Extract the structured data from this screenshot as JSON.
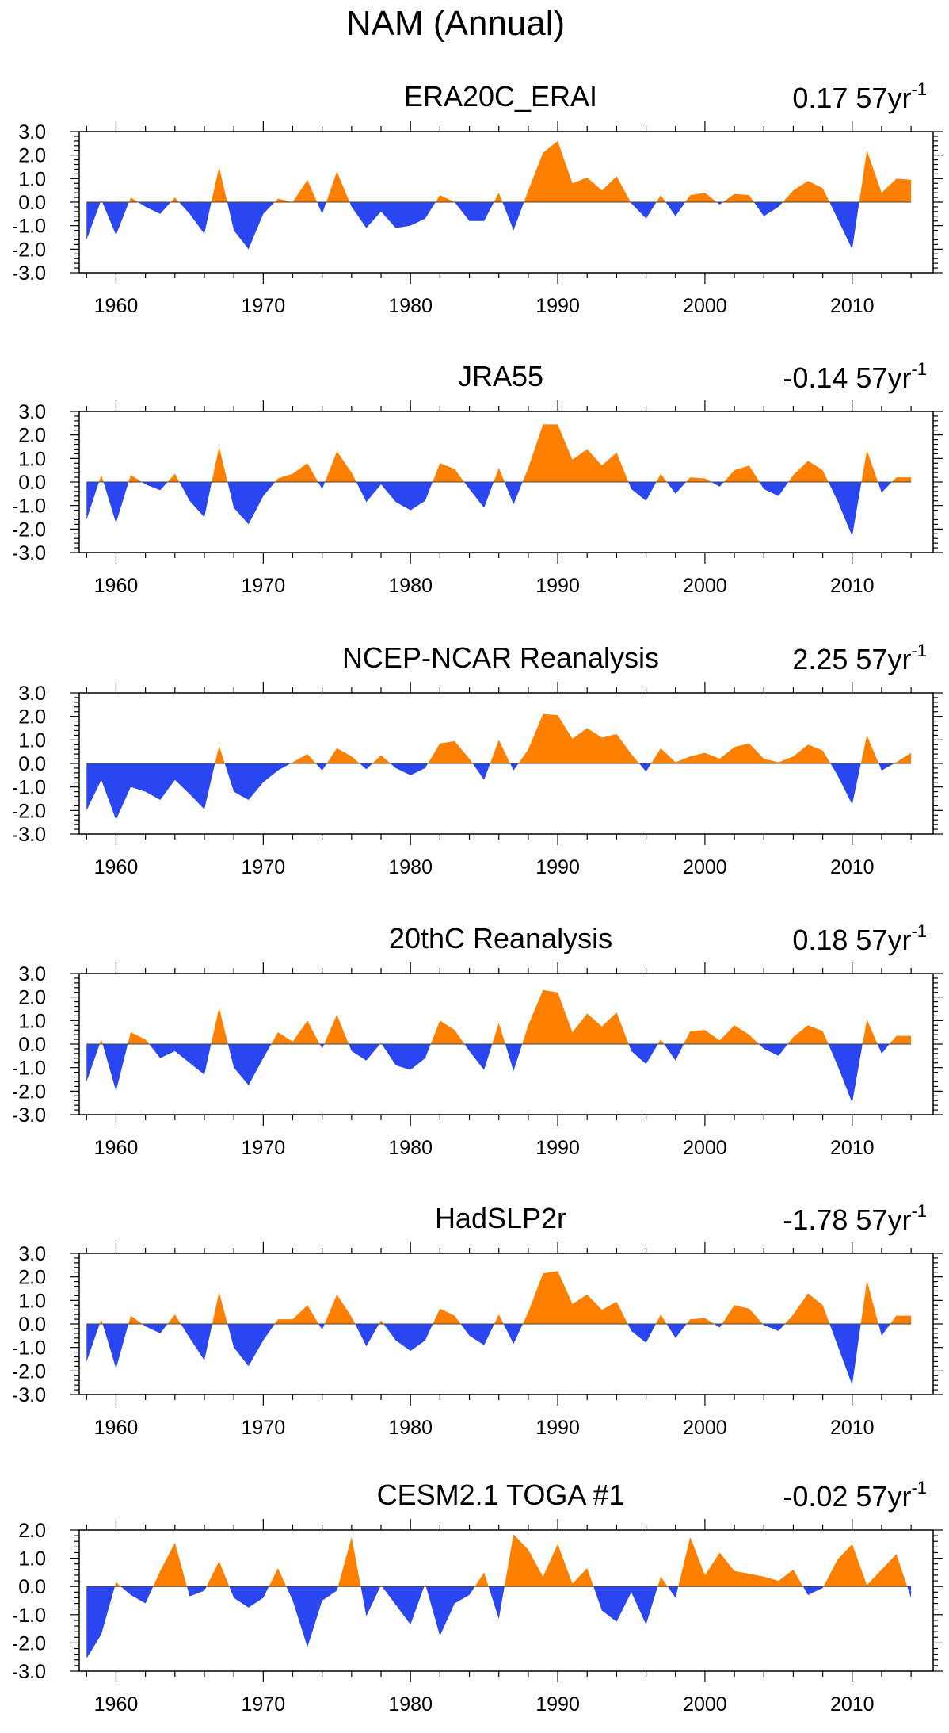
{
  "figure": {
    "title": "NAM (Annual)",
    "colors": {
      "positive": "#ff8000",
      "negative": "#2a46f0",
      "axis": "#000000"
    }
  },
  "chart_data": [
    {
      "type": "area",
      "title": "ERA20C_ERAI",
      "trend_label": "0.17 57yr",
      "trend_superscript": "-1",
      "x": [
        1958,
        1959,
        1960,
        1961,
        1962,
        1963,
        1964,
        1965,
        1966,
        1967,
        1968,
        1969,
        1970,
        1971,
        1972,
        1973,
        1974,
        1975,
        1976,
        1977,
        1978,
        1979,
        1980,
        1981,
        1982,
        1983,
        1984,
        1985,
        1986,
        1987,
        1988,
        1989,
        1990,
        1991,
        1992,
        1993,
        1994,
        1995,
        1996,
        1997,
        1998,
        1999,
        2000,
        2001,
        2002,
        2003,
        2004,
        2005,
        2006,
        2007,
        2008,
        2009,
        2010,
        2011,
        2012,
        2013,
        2014
      ],
      "values": [
        -1.6,
        0.1,
        -1.4,
        0.2,
        -0.2,
        -0.5,
        0.2,
        -0.5,
        -1.35,
        1.5,
        -1.2,
        -2.0,
        -0.5,
        0.15,
        0.0,
        0.95,
        -0.5,
        1.3,
        -0.2,
        -1.1,
        -0.4,
        -1.1,
        -1.0,
        -0.7,
        0.3,
        0.0,
        -0.8,
        -0.8,
        0.4,
        -1.2,
        0.5,
        2.1,
        2.6,
        0.8,
        1.05,
        0.5,
        1.1,
        -0.05,
        -0.7,
        0.3,
        -0.6,
        0.3,
        0.4,
        -0.1,
        0.35,
        0.3,
        -0.6,
        -0.2,
        0.5,
        0.9,
        0.6,
        -0.7,
        -2.0,
        2.2,
        0.4,
        1.0,
        0.95
      ],
      "xlim": [
        1957.5,
        2015.5
      ],
      "ylim": [
        -3.0,
        3.0
      ],
      "xticks": [
        1960,
        1970,
        1980,
        1990,
        2000,
        2010
      ],
      "yticks": [
        3.0,
        2.0,
        1.0,
        0.0,
        -1.0,
        -2.0,
        -3.0
      ],
      "ytick_labels": [
        "3.0",
        "2.0",
        "1.0",
        "0.0",
        "-1.0",
        "-2.0",
        "-3.0"
      ]
    },
    {
      "type": "area",
      "title": "JRA55",
      "trend_label": "-0.14 57yr",
      "trend_superscript": "-1",
      "x": [
        1958,
        1959,
        1960,
        1961,
        1962,
        1963,
        1964,
        1965,
        1966,
        1967,
        1968,
        1969,
        1970,
        1971,
        1972,
        1973,
        1974,
        1975,
        1976,
        1977,
        1978,
        1979,
        1980,
        1981,
        1982,
        1983,
        1984,
        1985,
        1986,
        1987,
        1988,
        1989,
        1990,
        1991,
        1992,
        1993,
        1994,
        1995,
        1996,
        1997,
        1998,
        1999,
        2000,
        2001,
        2002,
        2003,
        2004,
        2005,
        2006,
        2007,
        2008,
        2009,
        2010,
        2011,
        2012,
        2013,
        2014
      ],
      "values": [
        -1.6,
        0.3,
        -1.75,
        0.3,
        -0.1,
        -0.35,
        0.35,
        -0.8,
        -1.5,
        1.5,
        -1.1,
        -1.8,
        -0.6,
        0.15,
        0.35,
        0.8,
        -0.3,
        1.3,
        0.4,
        -0.85,
        -0.1,
        -0.85,
        -1.2,
        -0.8,
        0.8,
        0.55,
        -0.3,
        -1.1,
        0.6,
        -0.95,
        0.6,
        2.45,
        2.45,
        0.95,
        1.4,
        0.7,
        1.25,
        -0.3,
        -0.8,
        0.35,
        -0.5,
        0.2,
        0.15,
        -0.2,
        0.5,
        0.7,
        -0.3,
        -0.6,
        0.3,
        0.9,
        0.5,
        -0.8,
        -2.3,
        1.35,
        -0.45,
        0.2,
        0.2
      ],
      "xlim": [
        1957.5,
        2015.5
      ],
      "ylim": [
        -3.0,
        3.0
      ],
      "xticks": [
        1960,
        1970,
        1980,
        1990,
        2000,
        2010
      ],
      "yticks": [
        3.0,
        2.0,
        1.0,
        0.0,
        -1.0,
        -2.0,
        -3.0
      ],
      "ytick_labels": [
        "3.0",
        "2.0",
        "1.0",
        "0.0",
        "-1.0",
        "-2.0",
        "-3.0"
      ]
    },
    {
      "type": "area",
      "title": "NCEP-NCAR Reanalysis",
      "trend_label": "2.25 57yr",
      "trend_superscript": "-1",
      "x": [
        1958,
        1959,
        1960,
        1961,
        1962,
        1963,
        1964,
        1965,
        1966,
        1967,
        1968,
        1969,
        1970,
        1971,
        1972,
        1973,
        1974,
        1975,
        1976,
        1977,
        1978,
        1979,
        1980,
        1981,
        1982,
        1983,
        1984,
        1985,
        1986,
        1987,
        1988,
        1989,
        1990,
        1991,
        1992,
        1993,
        1994,
        1995,
        1996,
        1997,
        1998,
        1999,
        2000,
        2001,
        2002,
        2003,
        2004,
        2005,
        2006,
        2007,
        2008,
        2009,
        2010,
        2011,
        2012,
        2013,
        2014
      ],
      "values": [
        -2.0,
        -0.7,
        -2.4,
        -1.0,
        -1.2,
        -1.55,
        -0.7,
        -1.3,
        -1.95,
        0.75,
        -1.2,
        -1.55,
        -0.8,
        -0.3,
        0.05,
        0.4,
        -0.3,
        0.65,
        0.3,
        -0.25,
        0.35,
        -0.2,
        -0.5,
        -0.2,
        0.85,
        0.95,
        0.2,
        -0.7,
        1.0,
        -0.3,
        0.6,
        2.1,
        2.05,
        1.05,
        1.5,
        1.1,
        1.25,
        0.4,
        -0.35,
        0.65,
        0.05,
        0.3,
        0.45,
        0.2,
        0.7,
        0.85,
        0.2,
        0.05,
        0.3,
        0.8,
        0.55,
        -0.5,
        -1.75,
        1.2,
        -0.3,
        0.05,
        0.45
      ],
      "xlim": [
        1957.5,
        2015.5
      ],
      "ylim": [
        -3.0,
        3.0
      ],
      "xticks": [
        1960,
        1970,
        1980,
        1990,
        2000,
        2010
      ],
      "yticks": [
        3.0,
        2.0,
        1.0,
        0.0,
        -1.0,
        -2.0,
        -3.0
      ],
      "ytick_labels": [
        "3.0",
        "2.0",
        "1.0",
        "0.0",
        "-1.0",
        "-2.0",
        "-3.0"
      ]
    },
    {
      "type": "area",
      "title": "20thC Reanalysis",
      "trend_label": "0.18 57yr",
      "trend_superscript": "-1",
      "x": [
        1958,
        1959,
        1960,
        1961,
        1962,
        1963,
        1964,
        1965,
        1966,
        1967,
        1968,
        1969,
        1970,
        1971,
        1972,
        1973,
        1974,
        1975,
        1976,
        1977,
        1978,
        1979,
        1980,
        1981,
        1982,
        1983,
        1984,
        1985,
        1986,
        1987,
        1988,
        1989,
        1990,
        1991,
        1992,
        1993,
        1994,
        1995,
        1996,
        1997,
        1998,
        1999,
        2000,
        2001,
        2002,
        2003,
        2004,
        2005,
        2006,
        2007,
        2008,
        2009,
        2010,
        2011,
        2012,
        2013,
        2014
      ],
      "values": [
        -1.6,
        0.2,
        -2.0,
        0.5,
        0.2,
        -0.6,
        -0.3,
        -0.8,
        -1.3,
        1.55,
        -1.0,
        -1.75,
        -0.6,
        0.5,
        0.1,
        1.0,
        -0.2,
        1.25,
        -0.3,
        -0.7,
        0.05,
        -0.9,
        -1.1,
        -0.6,
        1.0,
        0.6,
        -0.3,
        -1.1,
        0.9,
        -1.15,
        0.8,
        2.3,
        2.2,
        0.5,
        1.3,
        0.75,
        1.35,
        -0.3,
        -0.85,
        0.2,
        -0.7,
        0.55,
        0.6,
        0.15,
        0.8,
        0.4,
        -0.2,
        -0.5,
        0.3,
        0.8,
        0.55,
        -0.9,
        -2.5,
        1.05,
        -0.4,
        0.35,
        0.35
      ],
      "xlim": [
        1957.5,
        2015.5
      ],
      "ylim": [
        -3.0,
        3.0
      ],
      "xticks": [
        1960,
        1970,
        1980,
        1990,
        2000,
        2010
      ],
      "yticks": [
        3.0,
        2.0,
        1.0,
        0.0,
        -1.0,
        -2.0,
        -3.0
      ],
      "ytick_labels": [
        "3.0",
        "2.0",
        "1.0",
        "0.0",
        "-1.0",
        "-2.0",
        "-3.0"
      ]
    },
    {
      "type": "area",
      "title": "HadSLP2r",
      "trend_label": "-1.78 57yr",
      "trend_superscript": "-1",
      "x": [
        1958,
        1959,
        1960,
        1961,
        1962,
        1963,
        1964,
        1965,
        1966,
        1967,
        1968,
        1969,
        1970,
        1971,
        1972,
        1973,
        1974,
        1975,
        1976,
        1977,
        1978,
        1979,
        1980,
        1981,
        1982,
        1983,
        1984,
        1985,
        1986,
        1987,
        1988,
        1989,
        1990,
        1991,
        1992,
        1993,
        1994,
        1995,
        1996,
        1997,
        1998,
        1999,
        2000,
        2001,
        2002,
        2003,
        2004,
        2005,
        2006,
        2007,
        2008,
        2009,
        2010,
        2011,
        2012,
        2013,
        2014
      ],
      "values": [
        -1.6,
        0.2,
        -1.9,
        0.35,
        -0.1,
        -0.4,
        0.4,
        -0.6,
        -1.55,
        1.35,
        -1.0,
        -1.8,
        -0.7,
        0.2,
        0.2,
        0.8,
        -0.25,
        1.25,
        0.3,
        -0.95,
        0.15,
        -0.7,
        -1.15,
        -0.7,
        0.65,
        0.35,
        -0.5,
        -0.9,
        0.4,
        -0.85,
        0.5,
        2.15,
        2.25,
        0.85,
        1.25,
        0.6,
        0.95,
        -0.3,
        -0.8,
        0.4,
        -0.6,
        0.2,
        0.25,
        -0.15,
        0.8,
        0.65,
        -0.05,
        -0.3,
        0.4,
        1.3,
        0.8,
        -0.9,
        -2.6,
        1.85,
        -0.5,
        0.35,
        0.35
      ],
      "xlim": [
        1957.5,
        2015.5
      ],
      "ylim": [
        -3.0,
        3.0
      ],
      "xticks": [
        1960,
        1970,
        1980,
        1990,
        2000,
        2010
      ],
      "yticks": [
        3.0,
        2.0,
        1.0,
        0.0,
        -1.0,
        -2.0,
        -3.0
      ],
      "ytick_labels": [
        "3.0",
        "2.0",
        "1.0",
        "0.0",
        "-1.0",
        "-2.0",
        "-3.0"
      ]
    },
    {
      "type": "area",
      "title": "CESM2.1 TOGA #1",
      "trend_label": "-0.02 57yr",
      "trend_superscript": "-1",
      "x": [
        1958,
        1959,
        1960,
        1961,
        1962,
        1963,
        1964,
        1965,
        1966,
        1967,
        1968,
        1969,
        1970,
        1971,
        1972,
        1973,
        1974,
        1975,
        1976,
        1977,
        1978,
        1979,
        1980,
        1981,
        1982,
        1983,
        1984,
        1985,
        1986,
        1987,
        1988,
        1989,
        1990,
        1991,
        1992,
        1993,
        1994,
        1995,
        1996,
        1997,
        1998,
        1999,
        2000,
        2001,
        2002,
        2003,
        2004,
        2005,
        2006,
        2007,
        2008,
        2009,
        2010,
        2011,
        2012,
        2013,
        2014
      ],
      "values": [
        -2.55,
        -1.7,
        0.15,
        -0.3,
        -0.6,
        0.55,
        1.55,
        -0.35,
        -0.15,
        0.9,
        -0.4,
        -0.75,
        -0.4,
        0.65,
        -0.5,
        -2.15,
        -0.5,
        -0.15,
        1.75,
        -1.05,
        0.05,
        -0.65,
        -1.35,
        0.1,
        -1.75,
        -0.6,
        -0.3,
        0.5,
        -1.15,
        1.85,
        1.3,
        0.35,
        1.5,
        0.1,
        0.65,
        -0.85,
        -1.25,
        -0.2,
        -1.35,
        0.35,
        -0.4,
        1.75,
        0.4,
        1.2,
        0.55,
        0.45,
        0.35,
        0.2,
        0.6,
        -0.3,
        -0.05,
        0.95,
        1.5,
        0.05,
        0.6,
        1.15,
        -0.4
      ],
      "xlim": [
        1957.5,
        2015.5
      ],
      "ylim": [
        -3.0,
        2.0
      ],
      "xticks": [
        1960,
        1970,
        1980,
        1990,
        2000,
        2010
      ],
      "yticks": [
        2.0,
        1.0,
        0.0,
        -1.0,
        -2.0,
        -3.0
      ],
      "ytick_labels": [
        "2.0",
        "1.0",
        "0.0",
        "-1.0",
        "-2.0",
        "-3.0"
      ]
    }
  ]
}
